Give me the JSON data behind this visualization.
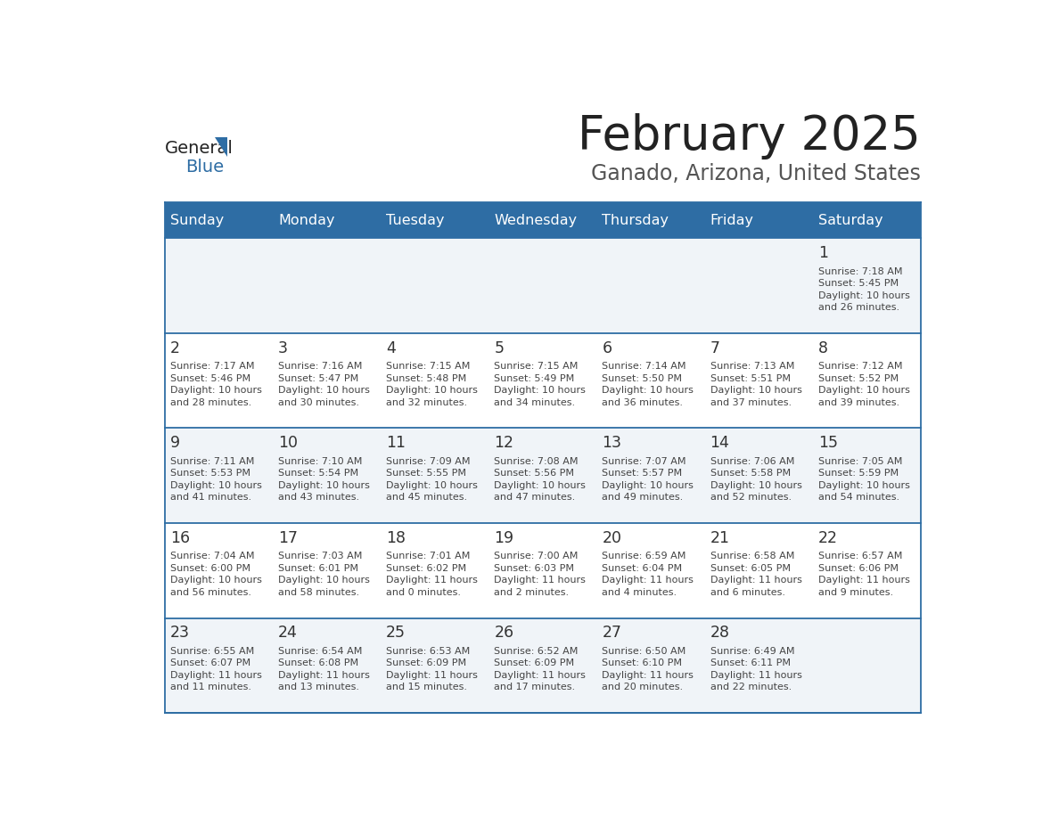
{
  "title": "February 2025",
  "subtitle": "Ganado, Arizona, United States",
  "header_bg_color": "#2E6DA4",
  "header_text_color": "#FFFFFF",
  "day_names": [
    "Sunday",
    "Monday",
    "Tuesday",
    "Wednesday",
    "Thursday",
    "Friday",
    "Saturday"
  ],
  "cell_bg_even": "#F0F4F8",
  "cell_bg_odd": "#FFFFFF",
  "grid_line_color": "#2E6DA4",
  "date_text_color": "#333333",
  "info_text_color": "#444444",
  "title_color": "#222222",
  "subtitle_color": "#555555",
  "logo_general_color": "#222222",
  "logo_blue_color": "#2E6DA4",
  "calendar": [
    [
      null,
      null,
      null,
      null,
      null,
      null,
      1
    ],
    [
      2,
      3,
      4,
      5,
      6,
      7,
      8
    ],
    [
      9,
      10,
      11,
      12,
      13,
      14,
      15
    ],
    [
      16,
      17,
      18,
      19,
      20,
      21,
      22
    ],
    [
      23,
      24,
      25,
      26,
      27,
      28,
      null
    ]
  ],
  "sun_data": {
    "1": {
      "rise": "7:18 AM",
      "set": "5:45 PM",
      "daylight": "10 hours and 26 minutes."
    },
    "2": {
      "rise": "7:17 AM",
      "set": "5:46 PM",
      "daylight": "10 hours and 28 minutes."
    },
    "3": {
      "rise": "7:16 AM",
      "set": "5:47 PM",
      "daylight": "10 hours and 30 minutes."
    },
    "4": {
      "rise": "7:15 AM",
      "set": "5:48 PM",
      "daylight": "10 hours and 32 minutes."
    },
    "5": {
      "rise": "7:15 AM",
      "set": "5:49 PM",
      "daylight": "10 hours and 34 minutes."
    },
    "6": {
      "rise": "7:14 AM",
      "set": "5:50 PM",
      "daylight": "10 hours and 36 minutes."
    },
    "7": {
      "rise": "7:13 AM",
      "set": "5:51 PM",
      "daylight": "10 hours and 37 minutes."
    },
    "8": {
      "rise": "7:12 AM",
      "set": "5:52 PM",
      "daylight": "10 hours and 39 minutes."
    },
    "9": {
      "rise": "7:11 AM",
      "set": "5:53 PM",
      "daylight": "10 hours and 41 minutes."
    },
    "10": {
      "rise": "7:10 AM",
      "set": "5:54 PM",
      "daylight": "10 hours and 43 minutes."
    },
    "11": {
      "rise": "7:09 AM",
      "set": "5:55 PM",
      "daylight": "10 hours and 45 minutes."
    },
    "12": {
      "rise": "7:08 AM",
      "set": "5:56 PM",
      "daylight": "10 hours and 47 minutes."
    },
    "13": {
      "rise": "7:07 AM",
      "set": "5:57 PM",
      "daylight": "10 hours and 49 minutes."
    },
    "14": {
      "rise": "7:06 AM",
      "set": "5:58 PM",
      "daylight": "10 hours and 52 minutes."
    },
    "15": {
      "rise": "7:05 AM",
      "set": "5:59 PM",
      "daylight": "10 hours and 54 minutes."
    },
    "16": {
      "rise": "7:04 AM",
      "set": "6:00 PM",
      "daylight": "10 hours and 56 minutes."
    },
    "17": {
      "rise": "7:03 AM",
      "set": "6:01 PM",
      "daylight": "10 hours and 58 minutes."
    },
    "18": {
      "rise": "7:01 AM",
      "set": "6:02 PM",
      "daylight": "11 hours and 0 minutes."
    },
    "19": {
      "rise": "7:00 AM",
      "set": "6:03 PM",
      "daylight": "11 hours and 2 minutes."
    },
    "20": {
      "rise": "6:59 AM",
      "set": "6:04 PM",
      "daylight": "11 hours and 4 minutes."
    },
    "21": {
      "rise": "6:58 AM",
      "set": "6:05 PM",
      "daylight": "11 hours and 6 minutes."
    },
    "22": {
      "rise": "6:57 AM",
      "set": "6:06 PM",
      "daylight": "11 hours and 9 minutes."
    },
    "23": {
      "rise": "6:55 AM",
      "set": "6:07 PM",
      "daylight": "11 hours and 11 minutes."
    },
    "24": {
      "rise": "6:54 AM",
      "set": "6:08 PM",
      "daylight": "11 hours and 13 minutes."
    },
    "25": {
      "rise": "6:53 AM",
      "set": "6:09 PM",
      "daylight": "11 hours and 15 minutes."
    },
    "26": {
      "rise": "6:52 AM",
      "set": "6:09 PM",
      "daylight": "11 hours and 17 minutes."
    },
    "27": {
      "rise": "6:50 AM",
      "set": "6:10 PM",
      "daylight": "11 hours and 20 minutes."
    },
    "28": {
      "rise": "6:49 AM",
      "set": "6:11 PM",
      "daylight": "11 hours and 22 minutes."
    }
  }
}
